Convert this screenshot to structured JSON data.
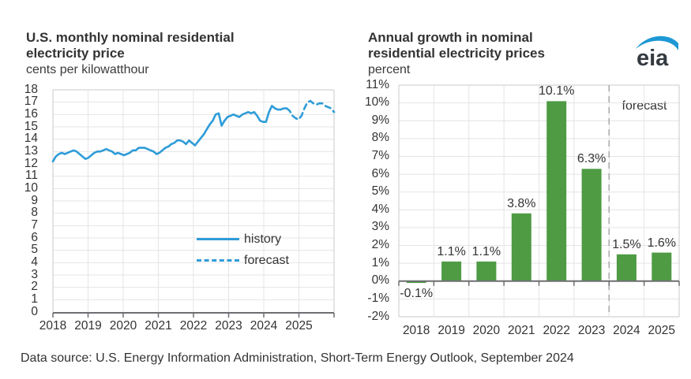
{
  "page": {
    "caption": "Data source: U.S. Energy Information Administration, Short-Term Energy Outlook, September 2024"
  },
  "left_chart": {
    "title_line1": "U.S. monthly nominal residential",
    "title_line2": "electricity price",
    "subtitle": "cents per kilowatthour",
    "legend": [
      {
        "label": "history",
        "style": "solid"
      },
      {
        "label": "forecast",
        "style": "dashed"
      }
    ]
  },
  "right_chart": {
    "title_line1": "Annual growth in nominal",
    "title_line2": "residential electricity prices",
    "subtitle": "percent",
    "forecast_label": "forecast",
    "logo_text": "eia"
  },
  "colors": {
    "line_blue": "#2E9CD8",
    "bar_green": "#4E9B44",
    "text": "#333333",
    "grid": "#e4e4e4",
    "border": "#c9c9c9",
    "axis": "#6d6e71",
    "divider": "#aaacae",
    "logo_blue": "#1e98d4"
  },
  "chart_data": [
    {
      "type": "line",
      "title": "U.S. monthly nominal residential electricity price",
      "ylabel": "cents per kilowatthour",
      "frequency": "monthly",
      "x_start": "2018-01",
      "x_end": "2025-12",
      "months_total": 96,
      "ylim": [
        0,
        18
      ],
      "yticks": [
        18,
        17,
        16,
        15,
        14,
        13,
        12,
        11,
        10,
        9,
        8,
        7,
        6,
        5,
        4,
        3,
        2,
        1,
        0
      ],
      "xticks": [
        2018,
        2019,
        2020,
        2021,
        2022,
        2023,
        2024,
        2025
      ],
      "grid": true,
      "legend_position": "middle-right",
      "series": [
        {
          "name": "history",
          "style": "solid",
          "start_month_index": 0,
          "values": [
            12.2,
            12.6,
            12.8,
            12.9,
            12.8,
            12.9,
            13.0,
            13.1,
            13.0,
            12.8,
            12.6,
            12.4,
            12.5,
            12.7,
            12.9,
            13.0,
            13.0,
            13.1,
            13.2,
            13.1,
            13.0,
            12.8,
            12.9,
            12.8,
            12.7,
            12.8,
            12.9,
            13.1,
            13.1,
            13.3,
            13.3,
            13.3,
            13.2,
            13.1,
            13.0,
            12.8,
            12.9,
            13.1,
            13.3,
            13.4,
            13.6,
            13.7,
            13.9,
            13.9,
            13.8,
            13.6,
            13.9,
            13.7,
            13.5,
            13.8,
            14.1,
            14.4,
            14.8,
            15.2,
            15.5,
            16.0,
            16.1,
            15.1,
            15.5,
            15.8,
            15.9,
            16.0,
            15.9,
            15.8,
            16.0,
            16.1,
            16.2,
            16.1,
            16.2,
            15.9,
            15.5,
            15.4,
            15.4,
            16.2,
            16.7,
            16.5,
            16.4,
            16.4,
            16.5,
            16.5
          ]
        },
        {
          "name": "forecast",
          "style": "dashed",
          "start_month_index": 79,
          "values": [
            16.5,
            16.3,
            15.9,
            15.7,
            15.6,
            15.9,
            16.5,
            17.0,
            17.1,
            16.9,
            16.8,
            16.9,
            16.9,
            16.7,
            16.6,
            16.5,
            16.2
          ]
        }
      ]
    },
    {
      "type": "bar",
      "title": "Annual growth in nominal residential electricity prices",
      "ylabel": "percent",
      "categories": [
        "2018",
        "2019",
        "2020",
        "2021",
        "2022",
        "2023",
        "2024",
        "2025"
      ],
      "values": [
        -0.1,
        1.1,
        1.1,
        3.8,
        10.1,
        6.3,
        1.5,
        1.6
      ],
      "value_labels": [
        "-0.1%",
        "1.1%",
        "1.1%",
        "3.8%",
        "10.1%",
        "6.3%",
        "1.5%",
        "1.6%"
      ],
      "ylim": [
        -2,
        11
      ],
      "ytick_labels": [
        "11%",
        "10%",
        "9%",
        "8%",
        "7%",
        "6%",
        "5%",
        "4%",
        "3%",
        "2%",
        "1%",
        "0%",
        "-1%",
        "-2%"
      ],
      "grid": true,
      "forecast_divider_after_index": 5,
      "forecast_label": "forecast"
    }
  ]
}
